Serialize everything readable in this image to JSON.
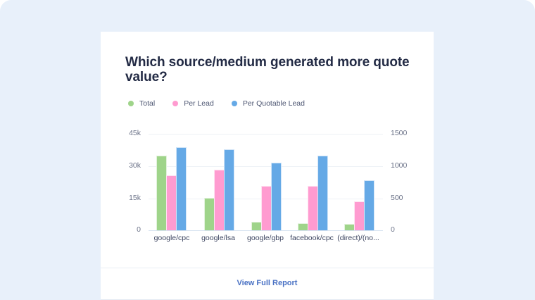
{
  "card": {
    "title": "Which source/medium generated more quote value?",
    "footer_link": "View Full Report"
  },
  "colors": {
    "total": "#9fd48a",
    "per_lead": "#ff9bd0",
    "per_quotable_lead": "#65a9e6",
    "link": "#4a72c4",
    "background": "#e8f0fa"
  },
  "legend": [
    {
      "label": "Total",
      "color": "#9fd48a"
    },
    {
      "label": "Per Lead",
      "color": "#ff9bd0"
    },
    {
      "label": "Per Quotable Lead",
      "color": "#65a9e6"
    }
  ],
  "chart_data": {
    "type": "bar",
    "title": "Which source/medium generated more quote value?",
    "categories": [
      "google/cpc",
      "google/lsa",
      "google/gbp",
      "facebook/cpc",
      "(direct)/(no..."
    ],
    "series": [
      {
        "name": "Total",
        "axis": "left",
        "color": "#9fd48a",
        "values": [
          34800,
          15100,
          3900,
          3300,
          3000
        ]
      },
      {
        "name": "Per Lead",
        "axis": "right",
        "color": "#ff9bd0",
        "values": [
          855,
          940,
          690,
          690,
          450
        ]
      },
      {
        "name": "Per Quotable Lead",
        "axis": "right",
        "color": "#65a9e6",
        "values": [
          1290,
          1260,
          1050,
          1160,
          780
        ]
      }
    ],
    "left_axis": {
      "ticks": [
        "0",
        "15k",
        "30k",
        "45k"
      ],
      "ylim": [
        0,
        45000
      ]
    },
    "right_axis": {
      "ticks": [
        "0",
        "500",
        "1000",
        "1500"
      ],
      "ylim": [
        0,
        1500
      ]
    },
    "xlabel": "",
    "ylabel": "",
    "grid": true,
    "legend_position": "top-left"
  }
}
